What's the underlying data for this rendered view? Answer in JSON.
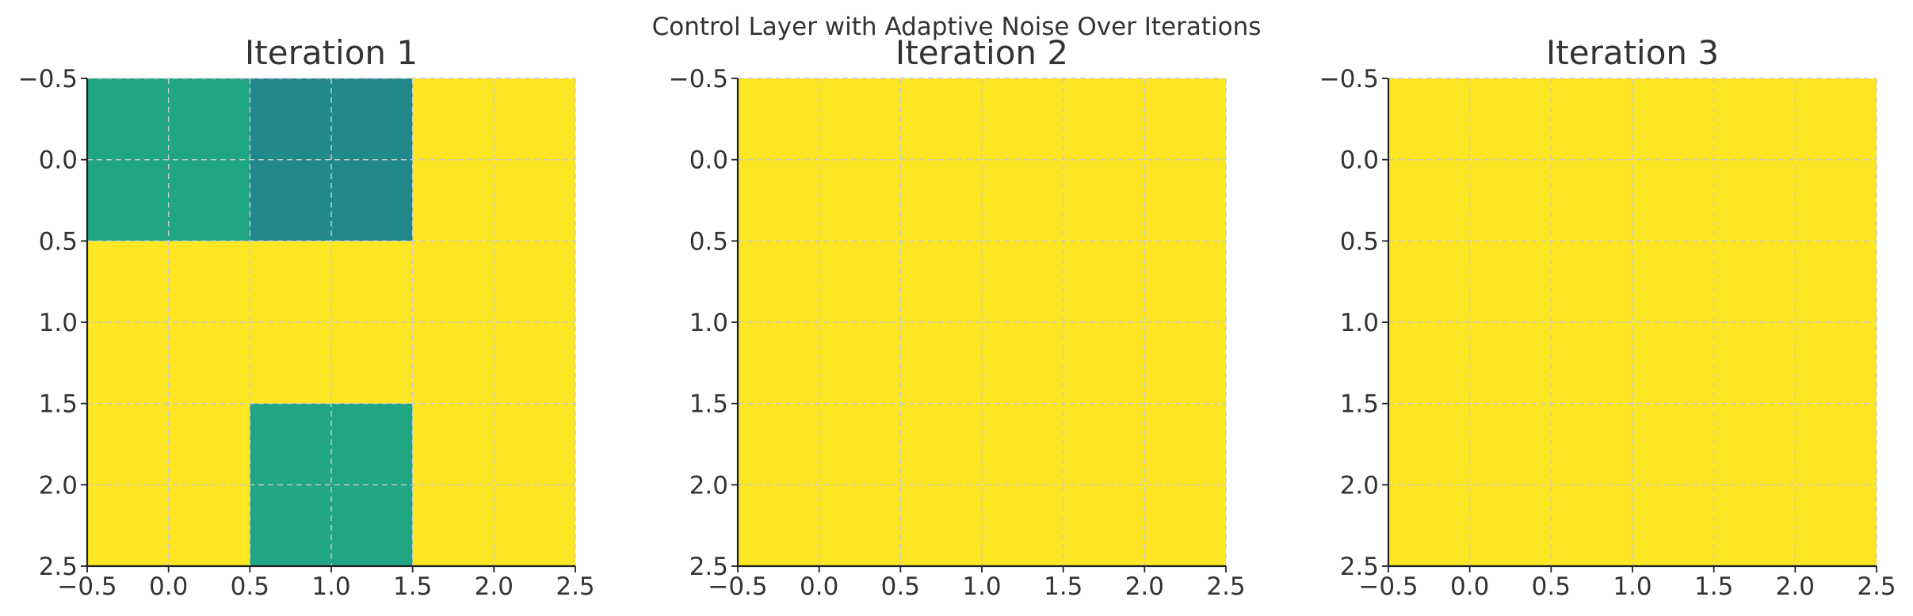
{
  "chart_data": {
    "title": "Control Layer with Adaptive Noise Over Iterations",
    "type": "heatmap",
    "colors": {
      "low": "#21a685",
      "mid": "#21888c",
      "high": "#fde725",
      "grid": "#cccccc",
      "axis": "#222222",
      "text": "#333333"
    },
    "panels": [
      {
        "title": "Iteration 1",
        "xlim": [
          -0.5,
          2.5
        ],
        "ylim": [
          2.5,
          -0.5
        ],
        "xticks": [
          "−0.5",
          "0.0",
          "0.5",
          "1.0",
          "1.5",
          "2.0",
          "2.5"
        ],
        "yticks": [
          "−0.5",
          "0.0",
          "0.5",
          "1.0",
          "1.5",
          "2.0",
          "2.5"
        ],
        "matrix": [
          [
            "low",
            "mid",
            "high"
          ],
          [
            "high",
            "high",
            "high"
          ],
          [
            "high",
            "low",
            "high"
          ]
        ]
      },
      {
        "title": "Iteration 2",
        "xlim": [
          -0.5,
          2.5
        ],
        "ylim": [
          2.5,
          -0.5
        ],
        "xticks": [
          "−0.5",
          "0.0",
          "0.5",
          "1.0",
          "1.5",
          "2.0",
          "2.5"
        ],
        "yticks": [
          "−0.5",
          "0.0",
          "0.5",
          "1.0",
          "1.5",
          "2.0",
          "2.5"
        ],
        "matrix": [
          [
            "high",
            "high",
            "high"
          ],
          [
            "high",
            "high",
            "high"
          ],
          [
            "high",
            "high",
            "high"
          ]
        ]
      },
      {
        "title": "Iteration 3",
        "xlim": [
          -0.5,
          2.5
        ],
        "ylim": [
          2.5,
          -0.5
        ],
        "xticks": [
          "−0.5",
          "0.0",
          "0.5",
          "1.0",
          "1.5",
          "2.0",
          "2.5"
        ],
        "yticks": [
          "−0.5",
          "0.0",
          "0.5",
          "1.0",
          "1.5",
          "2.0",
          "2.5"
        ],
        "matrix": [
          [
            "high",
            "high",
            "high"
          ],
          [
            "high",
            "high",
            "high"
          ],
          [
            "high",
            "high",
            "high"
          ]
        ]
      }
    ]
  }
}
